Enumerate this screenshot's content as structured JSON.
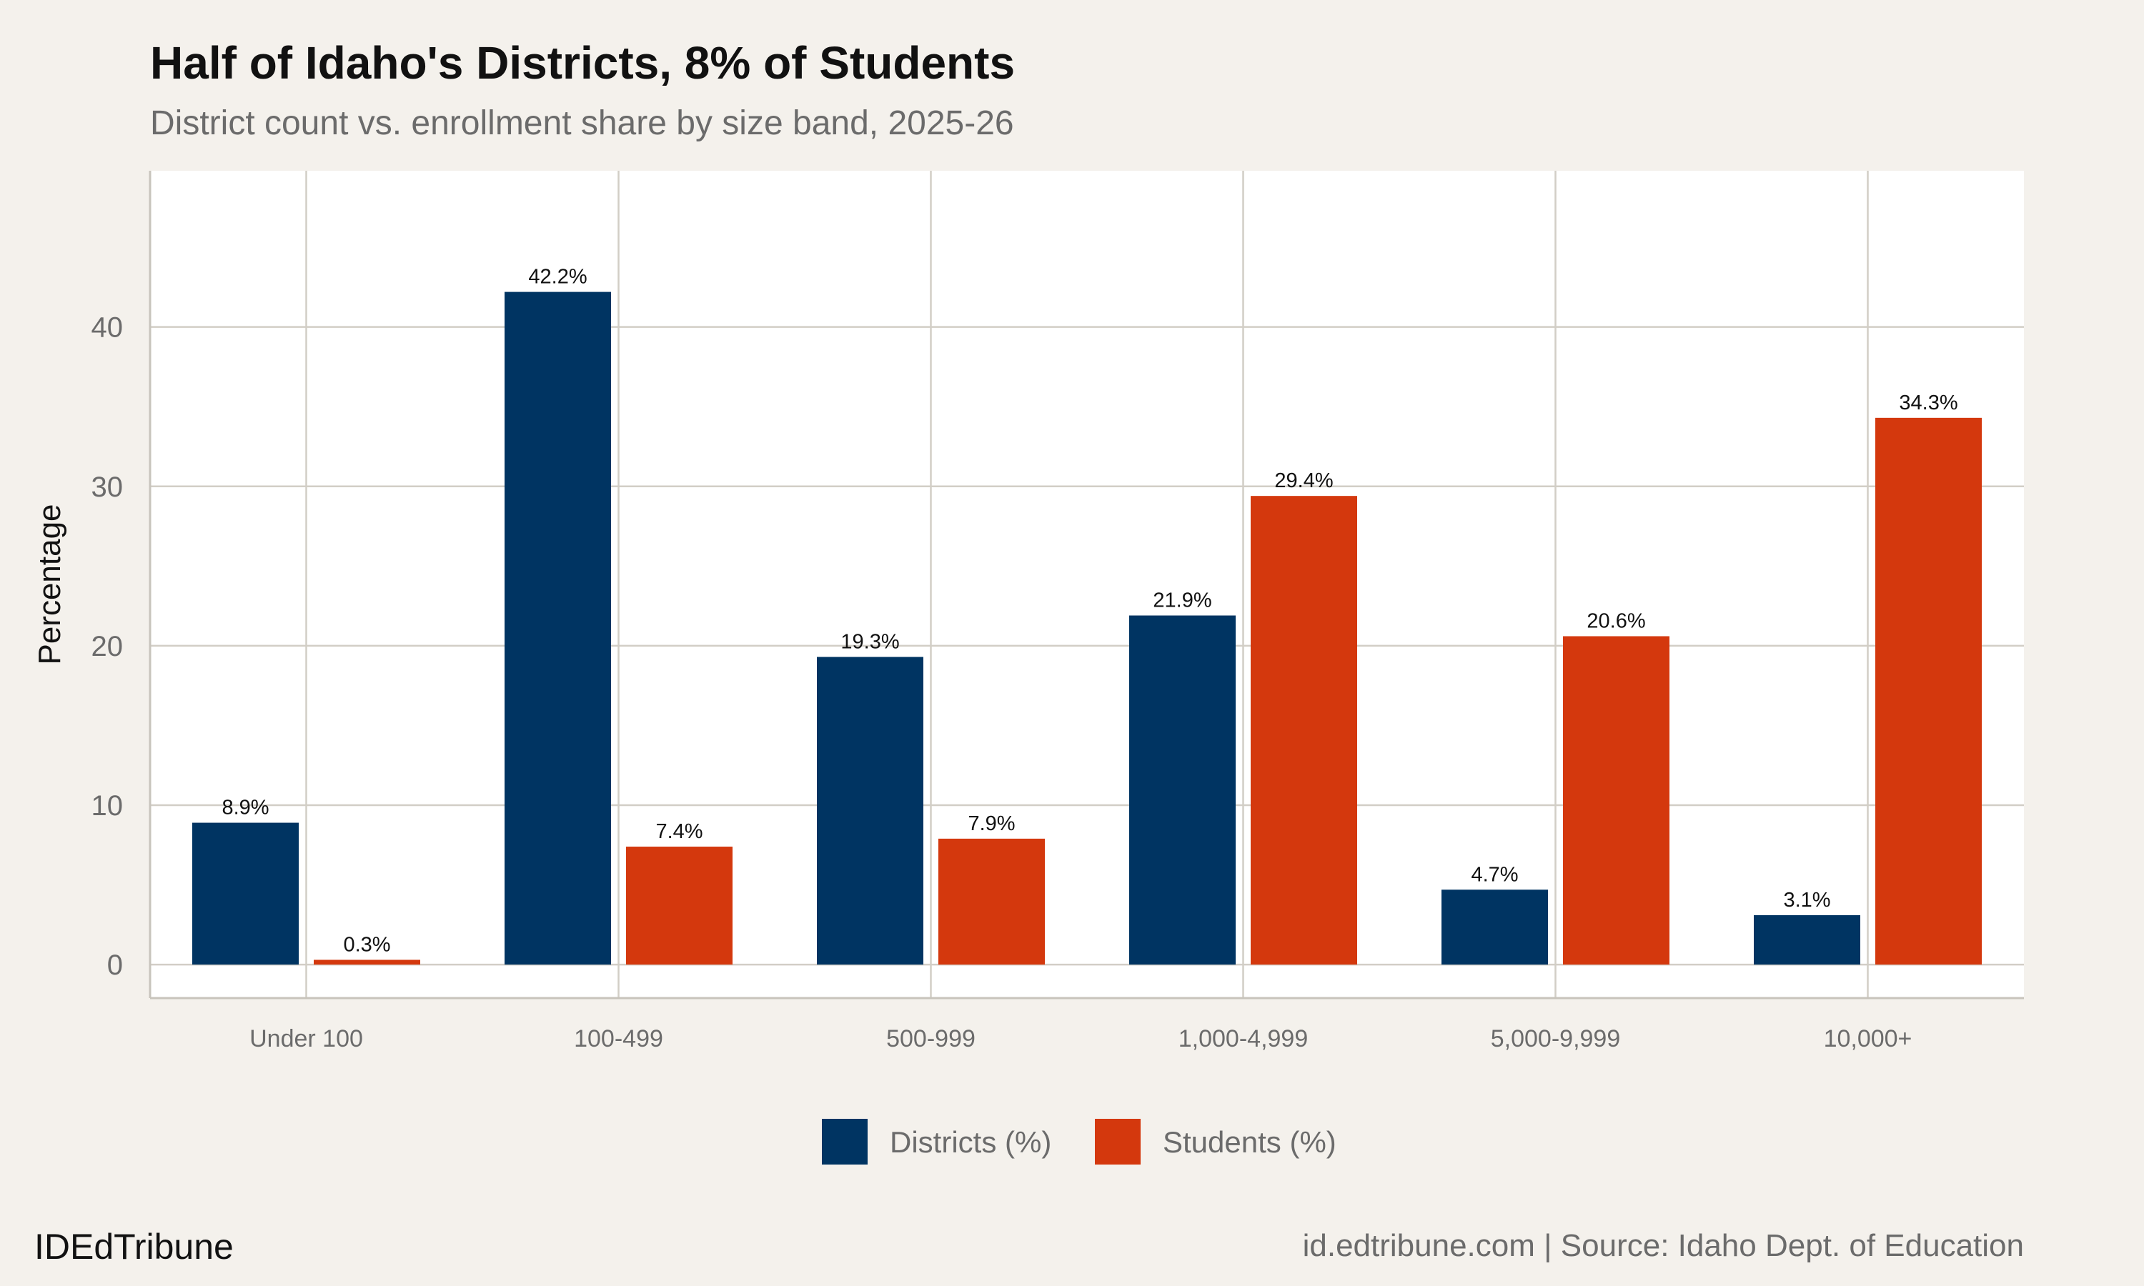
{
  "chart_data": {
    "type": "bar",
    "title": "Half of Idaho's Districts, 8% of Students",
    "subtitle": "District count vs. enrollment share by size band, 2025-26",
    "xlabel": "",
    "ylabel": "Percentage",
    "ylim": [
      -2.1,
      49.8
    ],
    "yticks": [
      0,
      10,
      20,
      30,
      40
    ],
    "grid": true,
    "legend_position": "bottom",
    "categories": [
      "Under 100",
      "100-499",
      "500-999",
      "1,000-4,999",
      "5,000-9,999",
      "10,000+"
    ],
    "series": [
      {
        "name": "Districts (%)",
        "color": "#003462",
        "values": [
          8.9,
          42.2,
          19.3,
          21.9,
          4.7,
          3.1
        ],
        "labels": [
          "8.9%",
          "42.2%",
          "19.3%",
          "21.9%",
          "4.7%",
          "3.1%"
        ]
      },
      {
        "name": "Students (%)",
        "color": "#D4380D",
        "values": [
          0.3,
          7.4,
          7.9,
          29.4,
          20.6,
          34.3
        ],
        "labels": [
          "0.3%",
          "7.4%",
          "7.9%",
          "29.4%",
          "20.6%",
          "34.3%"
        ]
      }
    ]
  },
  "footer": {
    "brand": "IDEdTribune",
    "source": "id.edtribune.com | Source: Idaho Dept. of Education"
  }
}
